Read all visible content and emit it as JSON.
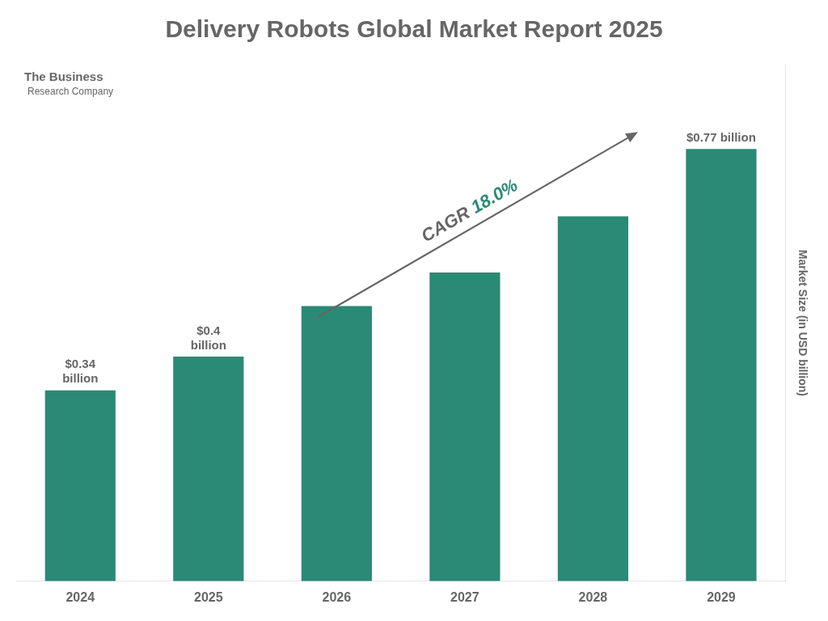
{
  "chart_data": {
    "type": "bar",
    "title": "Delivery Robots Global Market Report 2025",
    "ylabel": "Market Size (in USD billion)",
    "categories": [
      "2024",
      "2025",
      "2026",
      "2027",
      "2028",
      "2029"
    ],
    "values": [
      0.34,
      0.4,
      0.49,
      0.55,
      0.65,
      0.77
    ],
    "color": "#2a8a75",
    "ylim": [
      0,
      0.92
    ],
    "grid": false,
    "tick_labels": "x",
    "data_labels": true,
    "value_labels": [
      "$0.34\nbillion",
      "$0.4\nbillion",
      null,
      null,
      null,
      "$0.77 billion"
    ],
    "annotations": [
      "CAGR",
      "18.0%",
      "The Business",
      "Research Company"
    ]
  }
}
